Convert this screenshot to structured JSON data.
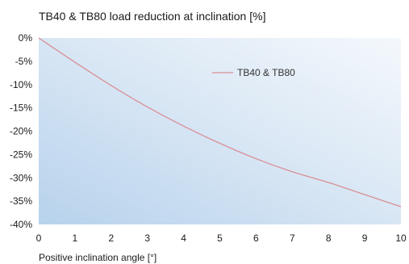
{
  "chart_data": {
    "type": "line",
    "title": "TB40 & TB80 load reduction at inclination [%]",
    "xlabel": "Positive inclination angle [°]",
    "ylabel": "",
    "xlim": [
      0,
      10
    ],
    "ylim": [
      -40,
      0
    ],
    "x_ticks": [
      0,
      1,
      2,
      3,
      4,
      5,
      6,
      7,
      8,
      9,
      10
    ],
    "y_ticks": [
      0,
      -5,
      -10,
      -15,
      -20,
      -25,
      -30,
      -35,
      -40
    ],
    "y_tick_labels": [
      "0%",
      "-5%",
      "-10%",
      "-15%",
      "-20%",
      "-25%",
      "-30%",
      "-35%",
      "-40%"
    ],
    "legend_position": "top-right",
    "grid": false,
    "series": [
      {
        "name": "TB40 & TB80",
        "color": "#d98f95",
        "x": [
          0,
          1,
          2,
          3,
          4,
          5,
          6,
          7,
          8,
          9,
          10
        ],
        "y": [
          0,
          -5.2,
          -10.2,
          -14.8,
          -18.9,
          -22.6,
          -25.9,
          -28.7,
          -31.0,
          -33.6,
          -36.2
        ]
      }
    ]
  }
}
